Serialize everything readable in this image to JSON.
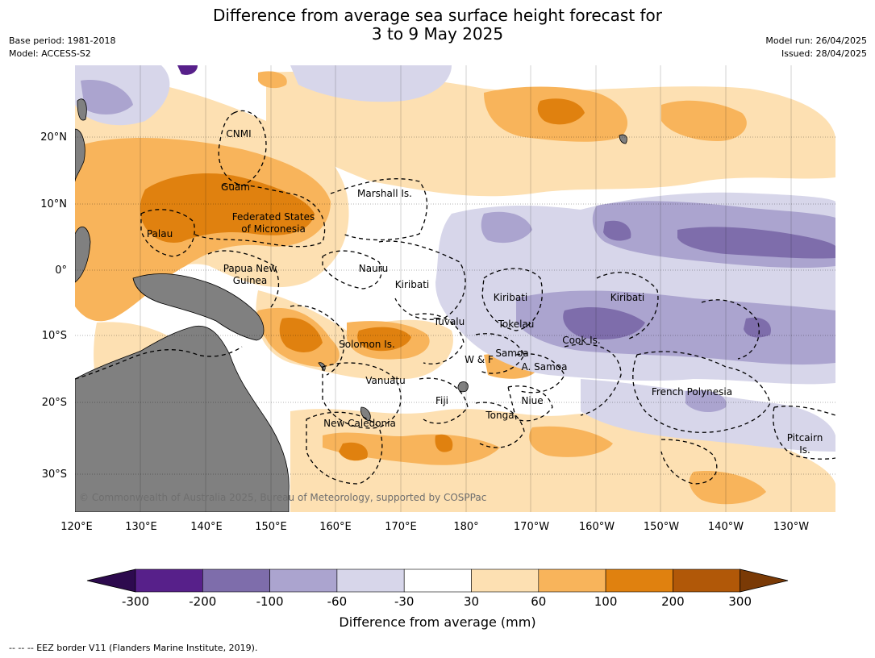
{
  "title": {
    "line1": "Difference from average sea surface height forecast for",
    "line2": "3 to 9 May 2025"
  },
  "meta_left": {
    "base_period": "Base period: 1981-2018",
    "model": "Model: ACCESS-S2"
  },
  "meta_right": {
    "model_run": "Model run: 26/04/2025",
    "issued": "Issued: 28/04/2025"
  },
  "copyright": "© Commonwealth of Australia 2025, Bureau of Meteorology, supported by COSPPac",
  "axes": {
    "lat_labels": [
      "20°N",
      "10°N",
      "0°",
      "10°S",
      "20°S",
      "30°S"
    ],
    "lon_labels": [
      "120°E",
      "130°E",
      "140°E",
      "150°E",
      "160°E",
      "170°E",
      "180°",
      "170°W",
      "160°W",
      "150°W",
      "140°W",
      "130°W"
    ]
  },
  "places": [
    "CNMI",
    "Guam",
    "Marshall Is.",
    "Federated States",
    "of Micronesia",
    "Palau",
    "Papua New",
    "Guinea",
    "Nauru",
    "Kiribati",
    "Kiribati",
    "Kiribati",
    "Tuvalu",
    "Tokelau",
    "Cook Is.",
    "Solomon Is.",
    "W & F",
    "Samoa",
    "A. Samoa",
    "Vanuatu",
    "Fiji",
    "Niue",
    "French Polynesia",
    "Tonga",
    "New Caledonia",
    "Pitcairn",
    "Is."
  ],
  "colorbar": {
    "title": "Difference from average (mm)",
    "ticks": [
      "-300",
      "-200",
      "-100",
      "-60",
      "-30",
      "30",
      "60",
      "100",
      "200",
      "300"
    ],
    "colors": {
      "below_min": "#2d0a4e",
      "bins": [
        "#57208a",
        "#7e6dab",
        "#aba4cf",
        "#d7d6ea",
        "#ffffff",
        "#fde0b2",
        "#f8b45b",
        "#e0810f",
        "#b15808"
      ],
      "above_max": "#7a3a06"
    }
  },
  "land_color": "#808080",
  "footer": "--  --  -- EEZ border V11 (Flanders Marine Institute, 2019)."
}
